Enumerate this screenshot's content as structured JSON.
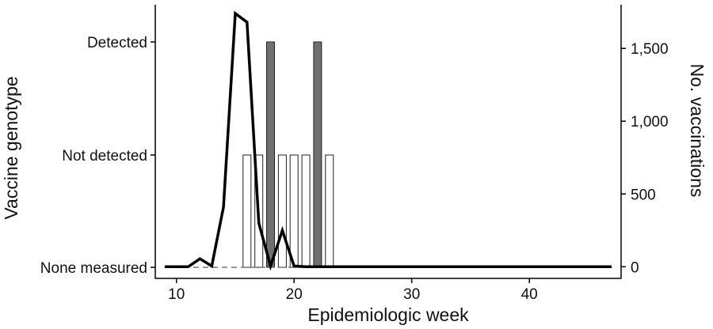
{
  "chart_data": {
    "type": "bar+line",
    "xlabel": "Epidemiologic week",
    "ylabel_left": "Vaccine genotype",
    "ylabel_right": "No. vaccinations",
    "xlim": [
      8.2,
      47.8
    ],
    "x_ticks": [
      10,
      20,
      30,
      40
    ],
    "y_left_categories": [
      "None measured",
      "Not detected",
      "Detected"
    ],
    "y_right_lim": [
      -80,
      1800
    ],
    "y_right_ticks": [
      0,
      500,
      1000,
      1500
    ],
    "y_right_tick_labels": [
      "0",
      "500",
      "1,000",
      "1,500"
    ],
    "genotype_bars": [
      {
        "week": 16,
        "status": "Not detected"
      },
      {
        "week": 17,
        "status": "Not detected"
      },
      {
        "week": 18,
        "status": "Detected"
      },
      {
        "week": 19,
        "status": "Not detected"
      },
      {
        "week": 20,
        "status": "Not detected"
      },
      {
        "week": 21,
        "status": "Not detected"
      },
      {
        "week": 22,
        "status": "Detected"
      },
      {
        "week": 23,
        "status": "Not detected"
      }
    ],
    "none_measured_weeks": [
      9,
      47
    ],
    "vaccinations": {
      "weeks": [
        9,
        10,
        11,
        12,
        13,
        14,
        15,
        16,
        17,
        18,
        19,
        20,
        21,
        22,
        23,
        24,
        25,
        26,
        27,
        28,
        29,
        30,
        31,
        32,
        33,
        34,
        35,
        36,
        37,
        38,
        39,
        40,
        41,
        42,
        43,
        44,
        45,
        46,
        47
      ],
      "values": [
        0,
        0,
        0,
        55,
        5,
        410,
        1740,
        1680,
        300,
        5,
        250,
        5,
        0,
        0,
        0,
        0,
        0,
        0,
        0,
        0,
        0,
        0,
        0,
        0,
        0,
        0,
        0,
        0,
        0,
        0,
        0,
        0,
        0,
        0,
        0,
        0,
        0,
        0,
        0
      ]
    },
    "colors": {
      "detected": "#707070",
      "not_detected": "#ffffff",
      "bar_stroke": "#222222",
      "line": "#000000",
      "dashed": "#777777"
    },
    "grid": false,
    "legend": "none"
  }
}
